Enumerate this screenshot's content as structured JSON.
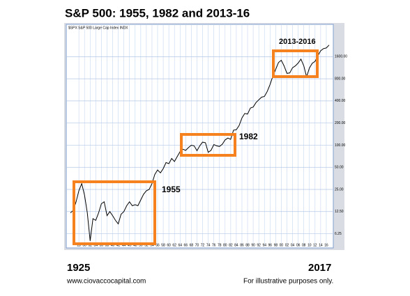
{
  "chart_data": {
    "type": "line",
    "title": "S&P 500:  1955, 1982 and 2013-16",
    "subtitle": "$SPX S&P 500 Large Cap Index INDX",
    "x": [
      1925,
      1926,
      1927,
      1928,
      1929,
      1930,
      1931,
      1932,
      1933,
      1934,
      1935,
      1936,
      1937,
      1938,
      1939,
      1940,
      1941,
      1942,
      1943,
      1944,
      1945,
      1946,
      1947,
      1948,
      1949,
      1950,
      1951,
      1952,
      1953,
      1954,
      1955,
      1956,
      1957,
      1958,
      1959,
      1960,
      1961,
      1962,
      1963,
      1964,
      1965,
      1966,
      1967,
      1968,
      1969,
      1970,
      1971,
      1972,
      1973,
      1974,
      1975,
      1976,
      1977,
      1978,
      1979,
      1980,
      1981,
      1982,
      1983,
      1984,
      1985,
      1986,
      1987,
      1988,
      1989,
      1990,
      1991,
      1992,
      1993,
      1994,
      1995,
      1996,
      1997,
      1998,
      1999,
      2000,
      2001,
      2002,
      2003,
      2004,
      2005,
      2006,
      2007,
      2008,
      2009,
      2010,
      2011,
      2012,
      2013,
      2014,
      2015,
      2016,
      2017
    ],
    "series": [
      {
        "color": "#000000",
        "values": [
          12,
          13,
          17,
          24,
          30,
          21,
          12,
          5,
          10,
          9.5,
          12,
          16,
          17,
          11,
          12.5,
          11,
          9.5,
          8.5,
          11.5,
          12.5,
          15,
          17,
          15,
          15.5,
          15,
          18,
          21.5,
          24,
          25,
          30,
          40,
          46,
          42,
          48,
          58,
          56,
          66,
          60,
          70,
          82,
          88,
          85,
          93,
          100,
          98,
          84,
          98,
          110,
          108,
          80,
          85,
          102,
          98,
          96,
          103,
          118,
          125,
          120,
          160,
          162,
          185,
          235,
          270,
          265,
          320,
          330,
          380,
          415,
          450,
          460,
          540,
          670,
          870,
          1080,
          1330,
          1430,
          1200,
          950,
          960,
          1130,
          1200,
          1310,
          1480,
          1200,
          850,
          1120,
          1300,
          1380,
          1640,
          1930,
          2060,
          2100,
          2300
        ]
      }
    ],
    "xlim": [
      1923.5,
      2018.5
    ],
    "ylim": [
      4,
      4400
    ],
    "log_scale": true,
    "grid": true,
    "xticks": [
      {
        "value": 1928,
        "label": "28"
      },
      {
        "value": 1930,
        "label": "30"
      },
      {
        "value": 1932,
        "label": "32"
      },
      {
        "value": 1934,
        "label": "34"
      },
      {
        "value": 1936,
        "label": "36"
      },
      {
        "value": 1938,
        "label": "38"
      },
      {
        "value": 1940,
        "label": "40"
      },
      {
        "value": 1942,
        "label": "42"
      },
      {
        "value": 1944,
        "label": "44"
      },
      {
        "value": 1946,
        "label": "46"
      },
      {
        "value": 1948,
        "label": "48"
      },
      {
        "value": 1950,
        "label": "50"
      },
      {
        "value": 1952,
        "label": "52"
      },
      {
        "value": 1954,
        "label": "54"
      },
      {
        "value": 1956,
        "label": "56"
      },
      {
        "value": 1958,
        "label": "58"
      },
      {
        "value": 1960,
        "label": "60"
      },
      {
        "value": 1962,
        "label": "62"
      },
      {
        "value": 1964,
        "label": "64"
      },
      {
        "value": 1966,
        "label": "66"
      },
      {
        "value": 1968,
        "label": "68"
      },
      {
        "value": 1970,
        "label": "70"
      },
      {
        "value": 1972,
        "label": "72"
      },
      {
        "value": 1974,
        "label": "74"
      },
      {
        "value": 1976,
        "label": "76"
      },
      {
        "value": 1978,
        "label": "78"
      },
      {
        "value": 1980,
        "label": "80"
      },
      {
        "value": 1982,
        "label": "82"
      },
      {
        "value": 1984,
        "label": "84"
      },
      {
        "value": 1986,
        "label": "86"
      },
      {
        "value": 1988,
        "label": "88"
      },
      {
        "value": 1990,
        "label": "90"
      },
      {
        "value": 1992,
        "label": "92"
      },
      {
        "value": 1994,
        "label": "94"
      },
      {
        "value": 1996,
        "label": "96"
      },
      {
        "value": 1998,
        "label": "98"
      },
      {
        "value": 2000,
        "label": "00"
      },
      {
        "value": 2002,
        "label": "02"
      },
      {
        "value": 2004,
        "label": "04"
      },
      {
        "value": 2006,
        "label": "06"
      },
      {
        "value": 2008,
        "label": "08"
      },
      {
        "value": 2010,
        "label": "10"
      },
      {
        "value": 2012,
        "label": "12"
      },
      {
        "value": 2014,
        "label": "14"
      },
      {
        "value": 2016,
        "label": "16"
      }
    ],
    "yticks": [
      6.25,
      {
        "value": 12.5,
        "label": "12.50"
      },
      {
        "value": 25,
        "label": "25.00"
      },
      {
        "value": 50,
        "label": "50.00"
      },
      {
        "value": 100,
        "label": "100.00"
      },
      {
        "value": 200,
        "label": "200.00"
      },
      {
        "value": 400,
        "label": "400.00"
      },
      {
        "value": 800,
        "label": "800.00"
      },
      {
        "value": 1600,
        "label": "1600.00"
      }
    ],
    "annotations": [
      "1955",
      "1982",
      "2013-2016"
    ],
    "start_label": "1925",
    "end_label": "2017",
    "source": "www.ciovaccocapital.com",
    "note": "For illustrative purposes only."
  }
}
